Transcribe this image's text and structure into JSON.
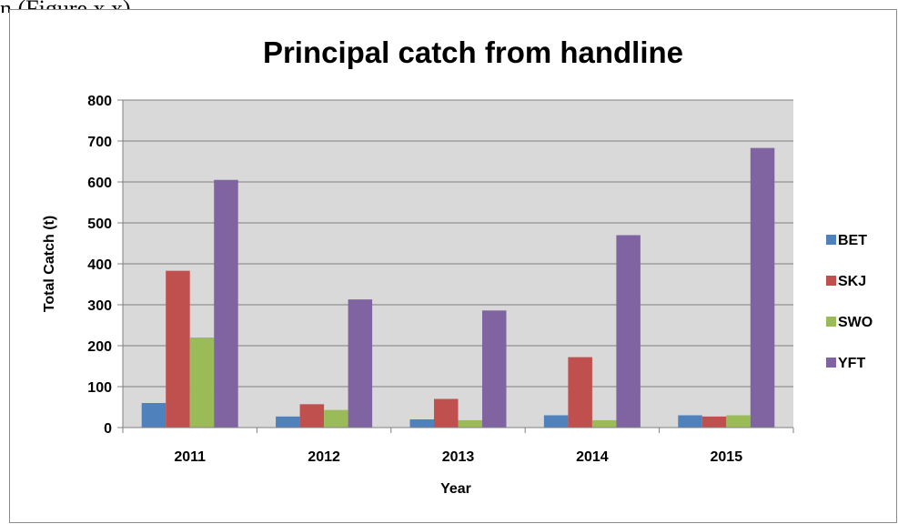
{
  "caption_fragment": "n (Figure x.x).",
  "chart_data": {
    "type": "bar",
    "title": "Principal catch from handline",
    "xlabel": "Year",
    "ylabel": "Total Catch (t)",
    "ylim": [
      0,
      800
    ],
    "yticks": [
      0,
      100,
      200,
      300,
      400,
      500,
      600,
      700,
      800
    ],
    "categories": [
      "2011",
      "2012",
      "2013",
      "2014",
      "2015"
    ],
    "grid": true,
    "legend_position": "right",
    "series": [
      {
        "name": "BET",
        "color": "#4f81bd",
        "values": [
          60,
          27,
          20,
          30,
          30
        ]
      },
      {
        "name": "SKJ",
        "color": "#c0504d",
        "values": [
          383,
          57,
          70,
          172,
          27
        ]
      },
      {
        "name": "SWO",
        "color": "#9bbb59",
        "values": [
          220,
          43,
          18,
          18,
          30
        ]
      },
      {
        "name": "YFT",
        "color": "#8064a2",
        "values": [
          605,
          313,
          286,
          470,
          683
        ]
      }
    ],
    "plot_background": "#d9d9d9"
  }
}
